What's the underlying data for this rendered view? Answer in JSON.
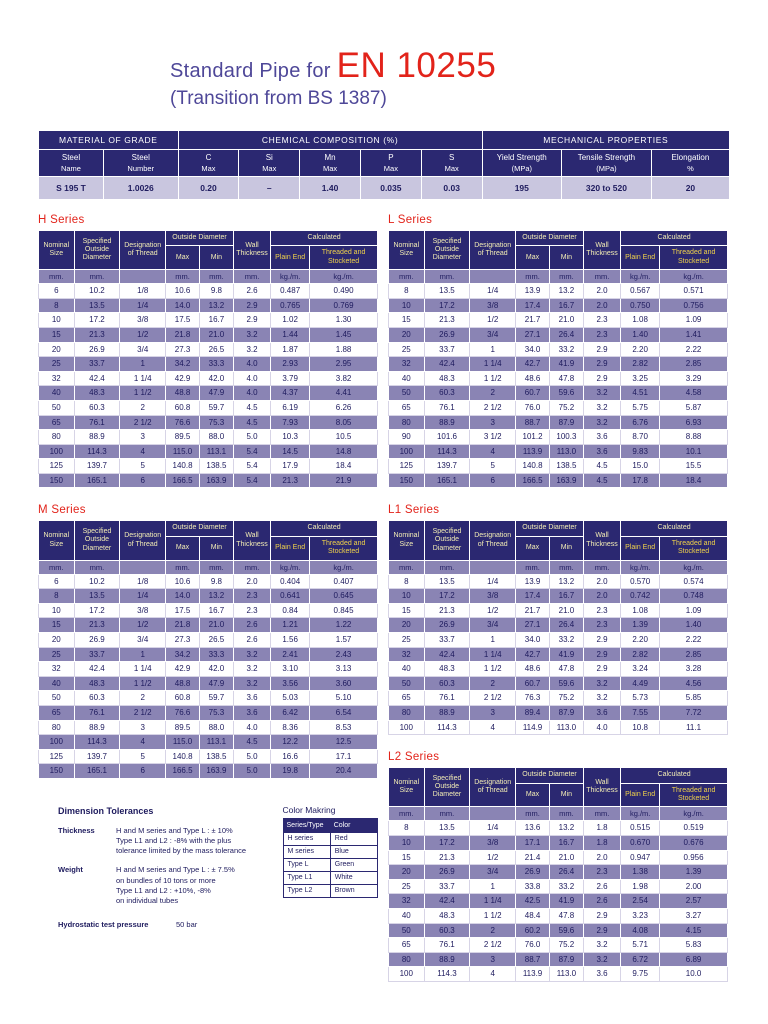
{
  "colors": {
    "navy": "#2b2871",
    "row_purple": "#8a84b4",
    "row_lavender": "#c9c6df",
    "red": "#e2231a",
    "title_purple": "#4e4798",
    "header_yellow": "#f3edb5",
    "header_gold": "#f0d24a",
    "text_navy": "#1e1b5e"
  },
  "page": {
    "title_prefix": "Standard Pipe for",
    "title_main": "EN 10255",
    "subtitle": "(Transition from BS 1387)"
  },
  "material_table": {
    "groups": [
      "MATERIAL OF GRADE",
      "CHEMICAL COMPOSITION (%)",
      "MECHANICAL PROPERTIES"
    ],
    "columns": [
      {
        "top": "Steel",
        "bottom": "Name"
      },
      {
        "top": "Steel",
        "bottom": "Number"
      },
      {
        "top": "C",
        "bottom": "Max"
      },
      {
        "top": "Si",
        "bottom": "Max"
      },
      {
        "top": "Mn",
        "bottom": "Max"
      },
      {
        "top": "P",
        "bottom": "Max"
      },
      {
        "top": "S",
        "bottom": "Max"
      },
      {
        "top": "Yield Strength",
        "bottom": "(MPa)"
      },
      {
        "top": "Tensile Strength",
        "bottom": "(MPa)"
      },
      {
        "top": "Elongation",
        "bottom": "%"
      }
    ],
    "row": [
      "S 195 T",
      "1.0026",
      "0.20",
      "–",
      "1.40",
      "0.035",
      "0.03",
      "195",
      "320 to 520",
      "20"
    ]
  },
  "series_headers": {
    "nominal_size": "Nominal Size",
    "specified_od": "Specified Outside Diameter",
    "designation": "Designation of Thread",
    "outside_diameter": "Outside Diameter",
    "max": "Max",
    "min": "Min",
    "wall_thickness": "Wall Thickness",
    "calculated": "Calculated",
    "plain_end": "Plain End",
    "threaded": "Threaded and Stocketed",
    "units": [
      "mm.",
      "mm.",
      "",
      "mm.",
      "mm.",
      "mm.",
      "kg./m.",
      "kg./m."
    ]
  },
  "series": {
    "h": {
      "label": "H Series",
      "rows": [
        [
          "6",
          "10.2",
          "1/8",
          "10.6",
          "9.8",
          "2.6",
          "0.487",
          "0.490"
        ],
        [
          "8",
          "13.5",
          "1/4",
          "14.0",
          "13.2",
          "2.9",
          "0.765",
          "0.769"
        ],
        [
          "10",
          "17.2",
          "3/8",
          "17.5",
          "16.7",
          "2.9",
          "1.02",
          "1.30"
        ],
        [
          "15",
          "21.3",
          "1/2",
          "21.8",
          "21.0",
          "3.2",
          "1.44",
          "1.45"
        ],
        [
          "20",
          "26.9",
          "3/4",
          "27.3",
          "26.5",
          "3.2",
          "1.87",
          "1.88"
        ],
        [
          "25",
          "33.7",
          "1",
          "34.2",
          "33.3",
          "4.0",
          "2.93",
          "2.95"
        ],
        [
          "32",
          "42.4",
          "1 1/4",
          "42.9",
          "42.0",
          "4.0",
          "3.79",
          "3.82"
        ],
        [
          "40",
          "48.3",
          "1 1/2",
          "48.8",
          "47.9",
          "4.0",
          "4.37",
          "4.41"
        ],
        [
          "50",
          "60.3",
          "2",
          "60.8",
          "59.7",
          "4.5",
          "6.19",
          "6.26"
        ],
        [
          "65",
          "76.1",
          "2 1/2",
          "76.6",
          "75.3",
          "4.5",
          "7.93",
          "8.05"
        ],
        [
          "80",
          "88.9",
          "3",
          "89.5",
          "88.0",
          "5.0",
          "10.3",
          "10.5"
        ],
        [
          "100",
          "114.3",
          "4",
          "115.0",
          "113.1",
          "5.4",
          "14.5",
          "14.8"
        ],
        [
          "125",
          "139.7",
          "5",
          "140.8",
          "138.5",
          "5.4",
          "17.9",
          "18.4"
        ],
        [
          "150",
          "165.1",
          "6",
          "166.5",
          "163.9",
          "5.4",
          "21.3",
          "21.9"
        ]
      ]
    },
    "l": {
      "label": "L Series",
      "rows": [
        [
          "8",
          "13.5",
          "1/4",
          "13.9",
          "13.2",
          "2.0",
          "0.567",
          "0.571"
        ],
        [
          "10",
          "17.2",
          "3/8",
          "17.4",
          "16.7",
          "2.0",
          "0.750",
          "0.756"
        ],
        [
          "15",
          "21.3",
          "1/2",
          "21.7",
          "21.0",
          "2.3",
          "1.08",
          "1.09"
        ],
        [
          "20",
          "26.9",
          "3/4",
          "27.1",
          "26.4",
          "2.3",
          "1.40",
          "1.41"
        ],
        [
          "25",
          "33.7",
          "1",
          "34.0",
          "33.2",
          "2.9",
          "2.20",
          "2.22"
        ],
        [
          "32",
          "42.4",
          "1 1/4",
          "42.7",
          "41.9",
          "2.9",
          "2.82",
          "2.85"
        ],
        [
          "40",
          "48.3",
          "1 1/2",
          "48.6",
          "47.8",
          "2.9",
          "3.25",
          "3.29"
        ],
        [
          "50",
          "60.3",
          "2",
          "60.7",
          "59.6",
          "3.2",
          "4.51",
          "4.58"
        ],
        [
          "65",
          "76.1",
          "2 1/2",
          "76.0",
          "75.2",
          "3.2",
          "5.75",
          "5.87"
        ],
        [
          "80",
          "88.9",
          "3",
          "88.7",
          "87.9",
          "3.2",
          "6.76",
          "6.93"
        ],
        [
          "90",
          "101.6",
          "3 1/2",
          "101.2",
          "100.3",
          "3.6",
          "8.70",
          "8.88"
        ],
        [
          "100",
          "114.3",
          "4",
          "113.9",
          "113.0",
          "3.6",
          "9.83",
          "10.1"
        ],
        [
          "125",
          "139.7",
          "5",
          "140.8",
          "138.5",
          "4.5",
          "15.0",
          "15.5"
        ],
        [
          "150",
          "165.1",
          "6",
          "166.5",
          "163.9",
          "4.5",
          "17.8",
          "18.4"
        ]
      ]
    },
    "m": {
      "label": "M Series",
      "rows": [
        [
          "6",
          "10.2",
          "1/8",
          "10.6",
          "9.8",
          "2.0",
          "0.404",
          "0.407"
        ],
        [
          "8",
          "13.5",
          "1/4",
          "14.0",
          "13.2",
          "2.3",
          "0.641",
          "0.645"
        ],
        [
          "10",
          "17.2",
          "3/8",
          "17.5",
          "16.7",
          "2.3",
          "0.84",
          "0.845"
        ],
        [
          "15",
          "21.3",
          "1/2",
          "21.8",
          "21.0",
          "2.6",
          "1.21",
          "1.22"
        ],
        [
          "20",
          "26.9",
          "3/4",
          "27.3",
          "26.5",
          "2.6",
          "1.56",
          "1.57"
        ],
        [
          "25",
          "33.7",
          "1",
          "34.2",
          "33.3",
          "3.2",
          "2.41",
          "2.43"
        ],
        [
          "32",
          "42.4",
          "1 1/4",
          "42.9",
          "42.0",
          "3.2",
          "3.10",
          "3.13"
        ],
        [
          "40",
          "48.3",
          "1 1/2",
          "48.8",
          "47.9",
          "3.2",
          "3.56",
          "3.60"
        ],
        [
          "50",
          "60.3",
          "2",
          "60.8",
          "59.7",
          "3.6",
          "5.03",
          "5.10"
        ],
        [
          "65",
          "76.1",
          "2 1/2",
          "76.6",
          "75.3",
          "3.6",
          "6.42",
          "6.54"
        ],
        [
          "80",
          "88.9",
          "3",
          "89.5",
          "88.0",
          "4.0",
          "8.36",
          "8.53"
        ],
        [
          "100",
          "114.3",
          "4",
          "115.0",
          "113.1",
          "4.5",
          "12.2",
          "12.5"
        ],
        [
          "125",
          "139.7",
          "5",
          "140.8",
          "138.5",
          "5.0",
          "16.6",
          "17.1"
        ],
        [
          "150",
          "165.1",
          "6",
          "166.5",
          "163.9",
          "5.0",
          "19.8",
          "20.4"
        ]
      ]
    },
    "l1": {
      "label": "L1 Series",
      "rows": [
        [
          "8",
          "13.5",
          "1/4",
          "13.9",
          "13.2",
          "2.0",
          "0.570",
          "0.574"
        ],
        [
          "10",
          "17.2",
          "3/8",
          "17.4",
          "16.7",
          "2.0",
          "0.742",
          "0.748"
        ],
        [
          "15",
          "21.3",
          "1/2",
          "21.7",
          "21.0",
          "2.3",
          "1.08",
          "1.09"
        ],
        [
          "20",
          "26.9",
          "3/4",
          "27.1",
          "26.4",
          "2.3",
          "1.39",
          "1.40"
        ],
        [
          "25",
          "33.7",
          "1",
          "34.0",
          "33.2",
          "2.9",
          "2.20",
          "2.22"
        ],
        [
          "32",
          "42.4",
          "1 1/4",
          "42.7",
          "41.9",
          "2.9",
          "2.82",
          "2.85"
        ],
        [
          "40",
          "48.3",
          "1 1/2",
          "48.6",
          "47.8",
          "2.9",
          "3.24",
          "3.28"
        ],
        [
          "50",
          "60.3",
          "2",
          "60.7",
          "59.6",
          "3.2",
          "4.49",
          "4.56"
        ],
        [
          "65",
          "76.1",
          "2 1/2",
          "76.3",
          "75.2",
          "3.2",
          "5.73",
          "5.85"
        ],
        [
          "80",
          "88.9",
          "3",
          "89.4",
          "87.9",
          "3.6",
          "7.55",
          "7.72"
        ],
        [
          "100",
          "114.3",
          "4",
          "114.9",
          "113.0",
          "4.0",
          "10.8",
          "11.1"
        ]
      ]
    },
    "l2": {
      "label": "L2 Series",
      "rows": [
        [
          "8",
          "13.5",
          "1/4",
          "13.6",
          "13.2",
          "1.8",
          "0.515",
          "0.519"
        ],
        [
          "10",
          "17.2",
          "3/8",
          "17.1",
          "16.7",
          "1.8",
          "0.670",
          "0.676"
        ],
        [
          "15",
          "21.3",
          "1/2",
          "21.4",
          "21.0",
          "2.0",
          "0.947",
          "0.956"
        ],
        [
          "20",
          "26.9",
          "3/4",
          "26.9",
          "26.4",
          "2.3",
          "1.38",
          "1.39"
        ],
        [
          "25",
          "33.7",
          "1",
          "33.8",
          "33.2",
          "2.6",
          "1.98",
          "2.00"
        ],
        [
          "32",
          "42.4",
          "1 1/4",
          "42.5",
          "41.9",
          "2.6",
          "2.54",
          "2.57"
        ],
        [
          "40",
          "48.3",
          "1 1/2",
          "48.4",
          "47.8",
          "2.9",
          "3.23",
          "3.27"
        ],
        [
          "50",
          "60.3",
          "2",
          "60.2",
          "59.6",
          "2.9",
          "4.08",
          "4.15"
        ],
        [
          "65",
          "76.1",
          "2 1/2",
          "76.0",
          "75.2",
          "3.2",
          "5.71",
          "5.83"
        ],
        [
          "80",
          "88.9",
          "3",
          "88.7",
          "87.9",
          "3.2",
          "6.72",
          "6.89"
        ],
        [
          "100",
          "114.3",
          "4",
          "113.9",
          "113.0",
          "3.6",
          "9.75",
          "10.0"
        ]
      ]
    }
  },
  "tolerances": {
    "title": "Dimension Tolerances",
    "items": [
      {
        "label": "Thickness",
        "text": "H and M series and Type L : ± 10%\nType L1 and L2 : -8% with the plus\ntolerance limited by the mass tolerance"
      },
      {
        "label": "Weight",
        "text": "H and M series and Type L : ± 7.5%\non bundles of 10 tons or more\nType L1 and L2 : +10%, -8%\non individual tubes"
      }
    ],
    "hydro_label": "Hydrostatic test pressure",
    "hydro_value": "50 bar"
  },
  "color_marking": {
    "title": "Color Makring",
    "headers": [
      "Series/Type",
      "Color"
    ],
    "rows": [
      [
        "H series",
        "Red"
      ],
      [
        "M series",
        "Blue"
      ],
      [
        "Type L",
        "Green"
      ],
      [
        "Type L1",
        "White"
      ],
      [
        "Type L2",
        "Brown"
      ]
    ]
  }
}
